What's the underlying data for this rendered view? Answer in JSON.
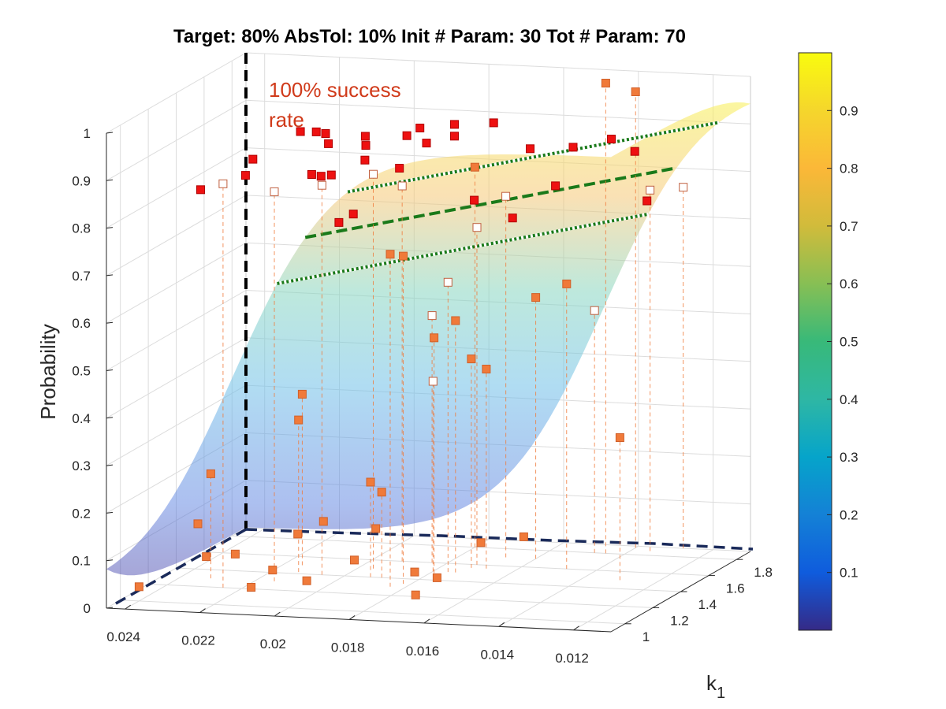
{
  "chart_data": {
    "type": "scatter",
    "subtype": "3d-surface-with-scatter",
    "title": "Target: 80%  AbsTol: 10%  Init # Param: 30  Tot # Param: 70",
    "zlabel": "Probability",
    "ylabel": "k",
    "ylabel_subscript": "1",
    "x_ticks": [
      "0.024",
      "0.022",
      "0.02",
      "0.018",
      "0.016",
      "0.014",
      "0.012"
    ],
    "x_range": [
      0.011,
      0.0245
    ],
    "x_reversed": true,
    "y_ticks": [
      "1",
      "1.2",
      "1.4",
      "1.6",
      "1.8"
    ],
    "y_range": [
      0.9,
      1.9
    ],
    "z_ticks": [
      "0",
      "0.1",
      "0.2",
      "0.3",
      "0.4",
      "0.5",
      "0.6",
      "0.7",
      "0.8",
      "0.9",
      "1"
    ],
    "z_range": [
      0,
      1
    ],
    "colorbar_ticks": [
      "0.1",
      "0.2",
      "0.3",
      "0.4",
      "0.5",
      "0.6",
      "0.7",
      "0.8",
      "0.9"
    ],
    "colorbar_range": [
      0,
      1
    ],
    "colormap": "parula",
    "grid": true,
    "target": 0.8,
    "tolerance": 0.1,
    "annotation": {
      "line1": "100% success",
      "line2": "rate",
      "color": "#d03a1a"
    },
    "colors": {
      "surface_low": "#3a3aa8",
      "surface_high": "#f8f050",
      "marker_in_band": "#ee1111",
      "marker_sampled": "#f07a3a",
      "contour": "#ffffff",
      "target_line": "#1a7a1a",
      "boundary": "#000000"
    },
    "points_in_band": [
      {
        "x": 0.0228,
        "y": 1.12,
        "z": 0.85
      },
      {
        "x": 0.022,
        "y": 1.28,
        "z": 0.89
      },
      {
        "x": 0.0219,
        "y": 1.2,
        "z": 0.87
      },
      {
        "x": 0.0214,
        "y": 1.46,
        "z": 0.92
      },
      {
        "x": 0.0212,
        "y": 1.52,
        "z": 0.91
      },
      {
        "x": 0.0211,
        "y": 1.56,
        "z": 0.9
      },
      {
        "x": 0.0208,
        "y": 1.5,
        "z": 0.89
      },
      {
        "x": 0.0205,
        "y": 1.3,
        "z": 0.86
      },
      {
        "x": 0.0204,
        "y": 1.34,
        "z": 0.85
      },
      {
        "x": 0.0202,
        "y": 1.36,
        "z": 0.85
      },
      {
        "x": 0.02,
        "y": 1.55,
        "z": 0.9
      },
      {
        "x": 0.0198,
        "y": 1.5,
        "z": 0.89
      },
      {
        "x": 0.0196,
        "y": 1.44,
        "z": 0.87
      },
      {
        "x": 0.0194,
        "y": 1.2,
        "z": 0.78
      },
      {
        "x": 0.0192,
        "y": 1.25,
        "z": 0.79
      },
      {
        "x": 0.019,
        "y": 1.58,
        "z": 0.9
      },
      {
        "x": 0.0188,
        "y": 1.62,
        "z": 0.91
      },
      {
        "x": 0.0186,
        "y": 1.42,
        "z": 0.86
      },
      {
        "x": 0.0184,
        "y": 1.56,
        "z": 0.89
      },
      {
        "x": 0.0181,
        "y": 1.68,
        "z": 0.91
      },
      {
        "x": 0.0178,
        "y": 1.6,
        "z": 0.9
      },
      {
        "x": 0.0172,
        "y": 1.72,
        "z": 0.91
      },
      {
        "x": 0.0166,
        "y": 1.42,
        "z": 0.8
      },
      {
        "x": 0.016,
        "y": 1.66,
        "z": 0.87
      },
      {
        "x": 0.0155,
        "y": 1.4,
        "z": 0.77
      },
      {
        "x": 0.015,
        "y": 1.7,
        "z": 0.87
      },
      {
        "x": 0.0148,
        "y": 1.52,
        "z": 0.82
      },
      {
        "x": 0.0142,
        "y": 1.76,
        "z": 0.88
      },
      {
        "x": 0.0135,
        "y": 1.74,
        "z": 0.86
      },
      {
        "x": 0.0125,
        "y": 1.56,
        "z": 0.79
      }
    ],
    "points_sampled": [
      {
        "x": 0.024,
        "y": 1.0,
        "z": 0.03
      },
      {
        "x": 0.0232,
        "y": 1.3,
        "z": 0.22
      },
      {
        "x": 0.0228,
        "y": 1.1,
        "z": 0.15
      },
      {
        "x": 0.0222,
        "y": 1.0,
        "z": 0.1
      },
      {
        "x": 0.0218,
        "y": 1.1,
        "z": 0.09
      },
      {
        "x": 0.0215,
        "y": 1.5,
        "z": 0.36
      },
      {
        "x": 0.0213,
        "y": 1.42,
        "z": 0.32
      },
      {
        "x": 0.021,
        "y": 1.0,
        "z": 0.04
      },
      {
        "x": 0.0208,
        "y": 1.1,
        "z": 0.06
      },
      {
        "x": 0.0205,
        "y": 1.2,
        "z": 0.12
      },
      {
        "x": 0.02,
        "y": 1.25,
        "z": 0.14
      },
      {
        "x": 0.0197,
        "y": 1.05,
        "z": 0.05
      },
      {
        "x": 0.0193,
        "y": 1.4,
        "z": 0.2
      },
      {
        "x": 0.019,
        "y": 1.4,
        "z": 0.18
      },
      {
        "x": 0.0188,
        "y": 1.15,
        "z": 0.08
      },
      {
        "x": 0.0186,
        "y": 1.25,
        "z": 0.13
      },
      {
        "x": 0.0184,
        "y": 1.3,
        "z": 0.7
      },
      {
        "x": 0.0182,
        "y": 1.34,
        "z": 0.69
      },
      {
        "x": 0.018,
        "y": 1.8,
        "z": 0.8
      },
      {
        "x": 0.0176,
        "y": 1.4,
        "z": 0.51
      },
      {
        "x": 0.0174,
        "y": 1.5,
        "z": 0.53
      },
      {
        "x": 0.0172,
        "y": 1.56,
        "z": 0.44
      },
      {
        "x": 0.017,
        "y": 1.1,
        "z": 0.07
      },
      {
        "x": 0.0168,
        "y": 1.56,
        "z": 0.42
      },
      {
        "x": 0.0166,
        "y": 1.0,
        "z": 0.04
      },
      {
        "x": 0.0164,
        "y": 1.1,
        "z": 0.06
      },
      {
        "x": 0.016,
        "y": 1.7,
        "z": 0.55
      },
      {
        "x": 0.0156,
        "y": 1.2,
        "z": 0.12
      },
      {
        "x": 0.0152,
        "y": 1.4,
        "z": 0.1
      },
      {
        "x": 0.0148,
        "y": 1.6,
        "z": 0.6
      },
      {
        "x": 0.0145,
        "y": 1.8,
        "z": 0.99
      },
      {
        "x": 0.014,
        "y": 1.88,
        "z": 0.96
      },
      {
        "x": 0.013,
        "y": 1.5,
        "z": 0.3
      }
    ],
    "points_open": [
      {
        "x": 0.0225,
        "y": 1.2,
        "z": 0.85
      },
      {
        "x": 0.0215,
        "y": 1.3,
        "z": 0.82
      },
      {
        "x": 0.0206,
        "y": 1.4,
        "z": 0.82
      },
      {
        "x": 0.0196,
        "y": 1.5,
        "z": 0.83
      },
      {
        "x": 0.0192,
        "y": 1.6,
        "z": 0.79
      },
      {
        "x": 0.0184,
        "y": 1.6,
        "z": 0.52
      },
      {
        "x": 0.018,
        "y": 1.5,
        "z": 0.4
      },
      {
        "x": 0.0176,
        "y": 1.5,
        "z": 0.61
      },
      {
        "x": 0.0172,
        "y": 1.6,
        "z": 0.71
      },
      {
        "x": 0.0168,
        "y": 1.7,
        "z": 0.76
      },
      {
        "x": 0.0148,
        "y": 1.8,
        "z": 0.51
      },
      {
        "x": 0.0135,
        "y": 1.85,
        "z": 0.76
      },
      {
        "x": 0.0128,
        "y": 1.9,
        "z": 0.76
      }
    ]
  }
}
